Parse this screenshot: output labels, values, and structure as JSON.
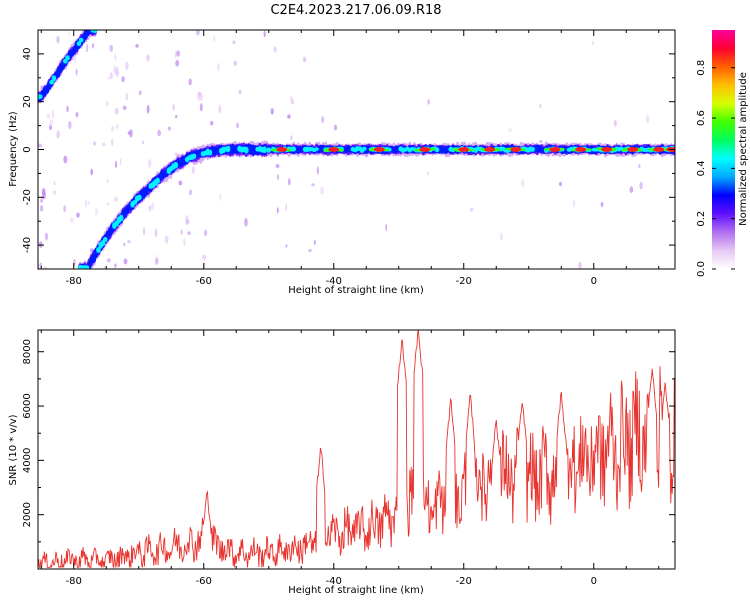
{
  "title": "C2E4.2023.217.06.09.R18",
  "colors": {
    "snr_line": "#e8332e",
    "colormap": [
      "#ffffff",
      "#e6c8f5",
      "#b070f0",
      "#6010ff",
      "#0000ff",
      "#00a8ff",
      "#00ffff",
      "#00ff60",
      "#40ff00",
      "#d8ff00",
      "#ffc000",
      "#ff6000",
      "#ff0030",
      "#ff00a0"
    ]
  },
  "chart_data": [
    {
      "type": "heatmap",
      "xlabel": "Height of straight line (km)",
      "ylabel": "Frequency (Hz)",
      "xlim": [
        -85.5,
        12.5
      ],
      "ylim": [
        -50,
        50
      ],
      "xticks": [
        -80,
        -60,
        -40,
        -20,
        0
      ],
      "xtick_labels": [
        "-80",
        "-60",
        "-40",
        "-20",
        "0"
      ],
      "yticks": [
        -40,
        -20,
        0,
        20,
        40
      ],
      "ytick_labels": [
        "-40",
        "-20",
        "0",
        "20",
        "40"
      ],
      "colorbar": {
        "label": "Normalized spectral amplitude",
        "range": [
          0,
          0.95
        ],
        "ticks": [
          0.0,
          0.2,
          0.4,
          0.6,
          0.8
        ],
        "tick_labels": [
          "0.0",
          "0.2",
          "0.4",
          "0.6",
          "0.8"
        ]
      },
      "ridge_main": {
        "x": [
          -78,
          -76,
          -74,
          -72,
          -70,
          -68,
          -66,
          -64,
          -62,
          -60,
          -58,
          -56,
          -54,
          -52,
          -50
        ],
        "y": [
          -50,
          -41,
          -33,
          -26,
          -20,
          -15,
          -10,
          -6,
          -3,
          -1.5,
          -0.5,
          0,
          0,
          0,
          0
        ]
      },
      "ridge_upper": {
        "x": [
          -85,
          -83,
          -81,
          -79,
          -77.5
        ],
        "y": [
          22,
          30,
          38,
          45,
          50
        ]
      },
      "ridge_flat": {
        "x": [
          -50,
          12.5
        ],
        "y": 0
      },
      "peak_amplitude_x": [
        -48,
        -40,
        -33,
        -26,
        -20,
        -16,
        -12,
        -6,
        -2,
        2,
        6,
        10,
        12
      ]
    },
    {
      "type": "line",
      "xlabel": "Height of straight line (km)",
      "ylabel": "SNR (10 * v/v)",
      "xlim": [
        -85.5,
        12.5
      ],
      "ylim": [
        0,
        8800
      ],
      "xticks": [
        -80,
        -60,
        -40,
        -20,
        0
      ],
      "xtick_labels": [
        "-80",
        "-60",
        "-40",
        "-20",
        "0"
      ],
      "yticks": [
        2000,
        4000,
        6000,
        8000
      ],
      "ytick_labels": [
        "2000",
        "4000",
        "6000",
        "8000"
      ],
      "series": [
        {
          "x": [
            -85,
            -80,
            -75,
            -70,
            -65,
            -60,
            -55,
            -50,
            -45,
            -40,
            -35,
            -30,
            -28,
            -25,
            -20,
            -15,
            -10,
            -5,
            0,
            5,
            10,
            12.5
          ],
          "y": [
            200,
            350,
            300,
            600,
            800,
            1100,
            600,
            600,
            800,
            1300,
            1500,
            2000,
            2600,
            2200,
            2800,
            3500,
            3300,
            3700,
            4200,
            4700,
            5300,
            4700
          ],
          "peaks": [
            {
              "x": -59.5,
              "y": 2900
            },
            {
              "x": -42,
              "y": 4500
            },
            {
              "x": -29.5,
              "y": 8500
            },
            {
              "x": -27,
              "y": 8800
            },
            {
              "x": -22,
              "y": 6200
            },
            {
              "x": -19,
              "y": 6400
            },
            {
              "x": -15,
              "y": 5500
            },
            {
              "x": -11,
              "y": 6200
            },
            {
              "x": -5,
              "y": 6500
            },
            {
              "x": 9,
              "y": 7400
            },
            {
              "x": 11,
              "y": 6800
            }
          ]
        }
      ]
    }
  ]
}
